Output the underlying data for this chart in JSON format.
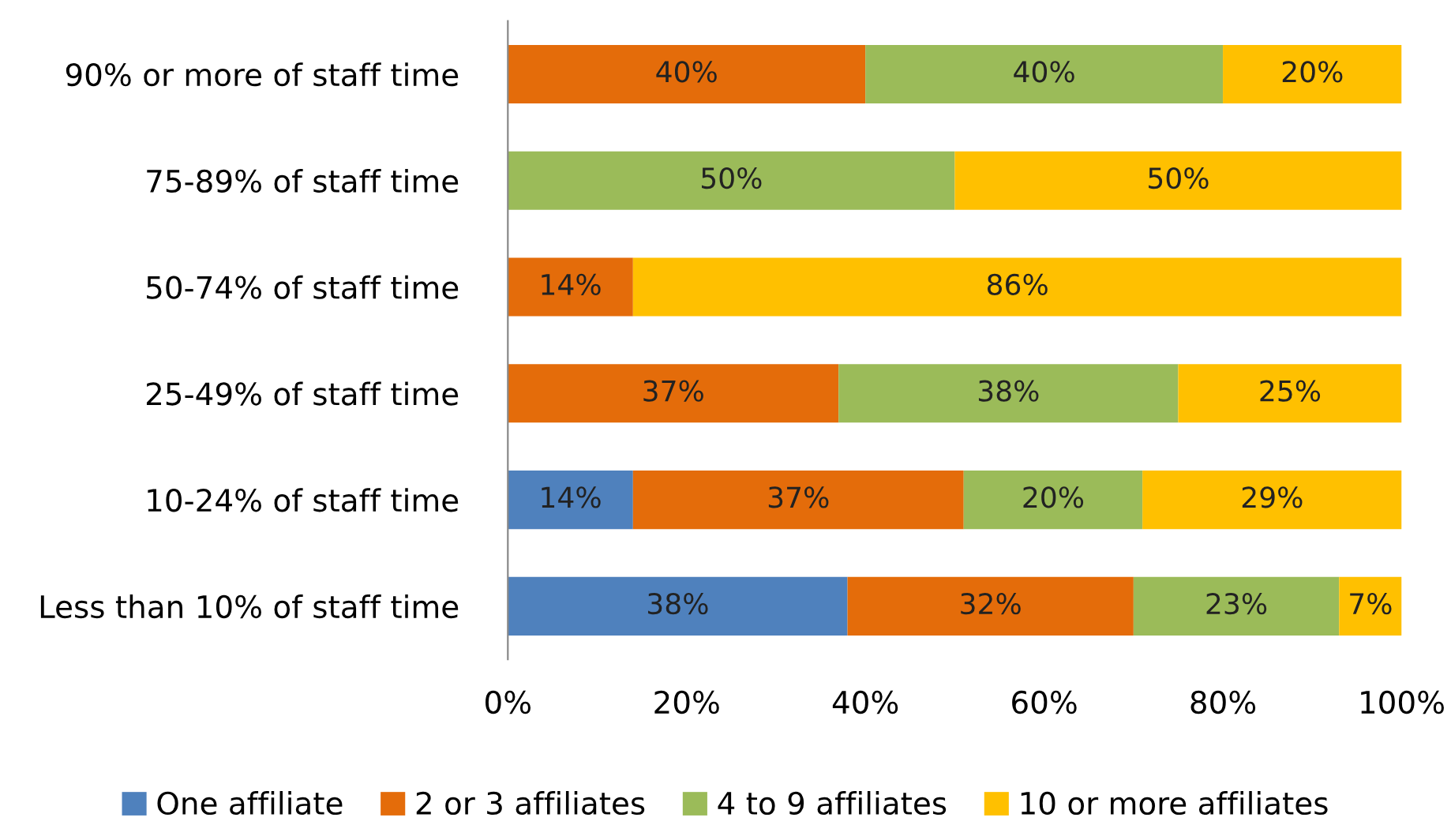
{
  "chart_data": {
    "type": "bar",
    "orientation": "horizontal",
    "stacked": true,
    "categories": [
      "90% or more of staff time",
      "75-89% of staff time",
      "50-74% of staff time",
      "25-49% of staff time",
      "10-24% of staff time",
      "Less than 10% of staff time"
    ],
    "series": [
      {
        "name": "One affiliate",
        "color": "#4f81bd",
        "values": [
          null,
          null,
          null,
          null,
          14,
          38
        ],
        "value_labels": [
          null,
          null,
          null,
          null,
          "14%",
          "38%"
        ]
      },
      {
        "name": "2 or 3 affiliates",
        "color": "#e46c0a",
        "values": [
          40,
          null,
          14,
          37,
          37,
          32
        ],
        "value_labels": [
          "40%",
          null,
          "14%",
          "37%",
          "37%",
          "32%"
        ]
      },
      {
        "name": "4 to 9 affiliates",
        "color": "#9bbb59",
        "values": [
          40,
          50,
          null,
          38,
          20,
          23
        ],
        "value_labels": [
          "40%",
          "50%",
          null,
          "38%",
          "20%",
          "23%"
        ]
      },
      {
        "name": "10 or more affiliates",
        "color": "#ffc000",
        "values": [
          20,
          50,
          86,
          25,
          29,
          7
        ],
        "value_labels": [
          "20%",
          "50%",
          "86%",
          "25%",
          "29%",
          "7%"
        ]
      }
    ],
    "xlim": [
      0,
      100
    ],
    "xticks": [
      {
        "value": 0,
        "label": "0%"
      },
      {
        "value": 20,
        "label": "20%"
      },
      {
        "value": 40,
        "label": "40%"
      },
      {
        "value": 60,
        "label": "60%"
      },
      {
        "value": 80,
        "label": "80%"
      },
      {
        "value": 100,
        "label": "100%"
      }
    ],
    "grid": false,
    "legend": "bottom"
  }
}
